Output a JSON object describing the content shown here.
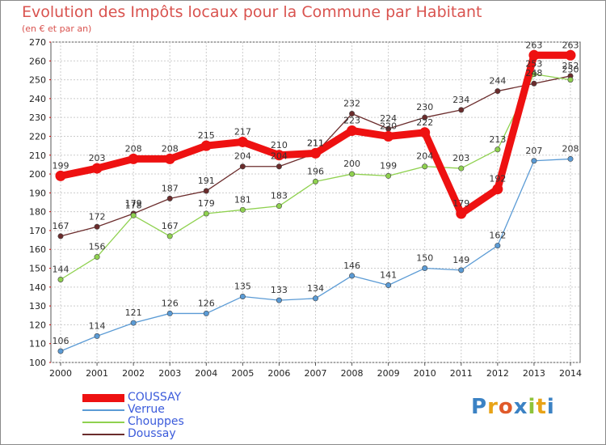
{
  "chart_data": {
    "type": "line",
    "title": "Evolution des Impôts locaux pour la Commune par Habitant",
    "subtitle": "(en € et par an)",
    "x": [
      "2000",
      "2001",
      "2002",
      "2003",
      "2004",
      "2005",
      "2006",
      "2007",
      "2008",
      "2009",
      "2010",
      "2011",
      "2012",
      "2013",
      "2014"
    ],
    "ylim": [
      100,
      270
    ],
    "yticks": [
      100,
      110,
      120,
      130,
      140,
      150,
      160,
      170,
      180,
      190,
      200,
      210,
      220,
      230,
      240,
      250,
      260,
      270
    ],
    "grid": true,
    "series": [
      {
        "name": "COUSSAY",
        "color": "#ee1111",
        "values": [
          199,
          203,
          208,
          208,
          215,
          217,
          210,
          211,
          223,
          220,
          222,
          179,
          192,
          263,
          263
        ],
        "labels": [
          "199",
          "203",
          "208",
          "208",
          "215",
          "217",
          "210",
          "211",
          "223",
          "220",
          "222",
          "179",
          "192",
          "263",
          "263"
        ]
      },
      {
        "name": "Verrue",
        "color": "#5b9bd5",
        "values": [
          106,
          114,
          121,
          126,
          126,
          135,
          133,
          134,
          146,
          141,
          150,
          149,
          162,
          207,
          208
        ],
        "labels": [
          "106",
          "114",
          "121",
          "126",
          "126",
          "135",
          "133",
          "134",
          "146",
          "141",
          "150",
          "149",
          "162",
          "207",
          "208"
        ]
      },
      {
        "name": "Chouppes",
        "color": "#8fd14f",
        "values": [
          144,
          156,
          178,
          167,
          179,
          181,
          183,
          196,
          200,
          199,
          204,
          203,
          213,
          253,
          250
        ],
        "labels": [
          "144",
          "156",
          "178",
          "167",
          "179",
          "181",
          "183",
          "196",
          "200",
          "199",
          "204",
          "203",
          "213",
          "253",
          "250"
        ]
      },
      {
        "name": "Doussay",
        "color": "#6b2c2c",
        "values": [
          167,
          172,
          179,
          187,
          191,
          204,
          204,
          211,
          232,
          224,
          230,
          234,
          244,
          248,
          252
        ],
        "labels": [
          "167",
          "172",
          "179",
          "187",
          "191",
          "204",
          "204",
          "211",
          "232",
          "224",
          "230",
          "234",
          "244",
          "248",
          "252"
        ]
      }
    ]
  },
  "logo": {
    "text": "Proxiti"
  }
}
